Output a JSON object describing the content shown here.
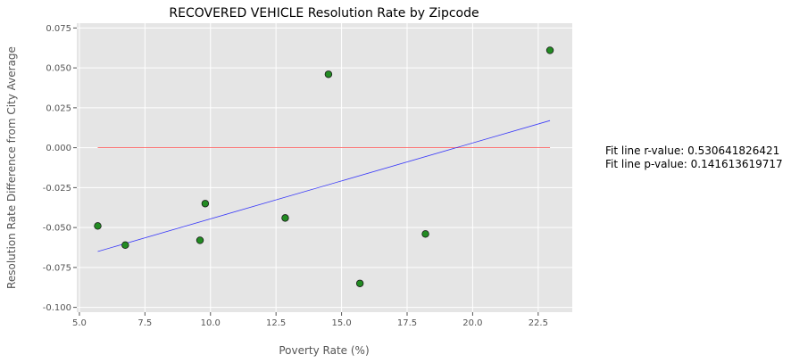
{
  "chart_data": {
    "type": "scatter",
    "title": "RECOVERED VEHICLE Resolution Rate by Zipcode",
    "xlabel": "Poverty Rate (%)",
    "ylabel": "Resolution Rate Difference from City Average",
    "xlim": [
      4.9,
      23.8
    ],
    "ylim": [
      -0.103,
      0.078
    ],
    "x_ticks": [
      5.0,
      7.5,
      10.0,
      12.5,
      15.0,
      17.5,
      20.0,
      22.5
    ],
    "x_tick_labels": [
      "5.0",
      "7.5",
      "10.0",
      "12.5",
      "15.0",
      "17.5",
      "20.0",
      "22.5"
    ],
    "y_ticks": [
      -0.1,
      -0.075,
      -0.05,
      -0.025,
      0.0,
      0.025,
      0.05,
      0.075
    ],
    "y_tick_labels": [
      "-0.100",
      "-0.075",
      "-0.050",
      "-0.025",
      "0.000",
      "0.025",
      "0.050",
      "0.075"
    ],
    "grid": true,
    "points": [
      {
        "x": 5.7,
        "y": -0.049
      },
      {
        "x": 6.75,
        "y": -0.061
      },
      {
        "x": 9.6,
        "y": -0.058
      },
      {
        "x": 9.8,
        "y": -0.035
      },
      {
        "x": 12.85,
        "y": -0.044
      },
      {
        "x": 14.5,
        "y": 0.046
      },
      {
        "x": 15.7,
        "y": -0.085
      },
      {
        "x": 18.2,
        "y": -0.054
      },
      {
        "x": 22.95,
        "y": 0.061
      }
    ],
    "fit_line": {
      "x": [
        5.7,
        22.95
      ],
      "y": [
        -0.065,
        0.017
      ],
      "color": "#0000ff"
    },
    "zero_line": {
      "x": [
        5.7,
        22.95
      ],
      "y": [
        0.0,
        0.0
      ],
      "color": "#ff0000"
    },
    "point_color": "#228b22",
    "annotations": [
      "Fit line r-value: 0.530641826421",
      "Fit line p-value: 0.141613619717"
    ]
  },
  "colors": {
    "plot_background": "#e5e5e5",
    "grid": "#ffffff"
  }
}
